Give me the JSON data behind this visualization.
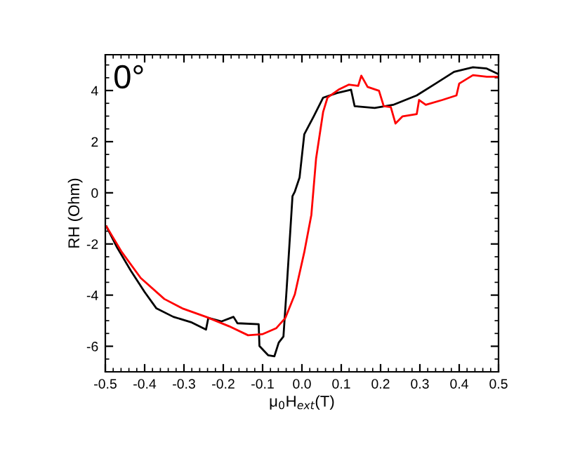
{
  "chart_data": {
    "type": "line",
    "xlabel": "μ$_{0}$H$_{ext}$(T)",
    "ylabel": "RH (Ohm)",
    "annotations": [
      "0°"
    ],
    "xlim": [
      -0.5,
      0.5
    ],
    "xticks": [
      -0.5,
      -0.4,
      -0.3,
      -0.2,
      -0.1,
      {
        "value": 0,
        "label": "0.0"
      },
      0.1,
      0.2,
      0.3,
      0.4,
      0.5
    ],
    "ylim": [
      -7,
      5.4
    ],
    "yticks": [
      -6,
      -4,
      -2,
      0,
      2,
      4
    ],
    "grid": false,
    "legend": false,
    "marker": "none",
    "line_style": "solid",
    "series": [
      {
        "color": "#000000",
        "x": [
          -0.497,
          -0.47,
          -0.435,
          -0.4,
          -0.37,
          -0.327,
          -0.28,
          -0.244,
          -0.238,
          -0.205,
          -0.174,
          -0.164,
          -0.11,
          -0.108,
          -0.086,
          -0.07,
          -0.059,
          -0.047,
          -0.039,
          -0.024,
          -0.018,
          -0.006,
          0.006,
          0.03,
          0.054,
          0.089,
          0.125,
          0.134,
          0.185,
          0.232,
          0.292,
          0.34,
          0.387,
          0.435,
          0.47,
          0.5
        ],
        "values": [
          -1.32,
          -2.14,
          -3.05,
          -3.88,
          -4.52,
          -4.85,
          -5.07,
          -5.35,
          -4.89,
          -5.03,
          -4.85,
          -5.1,
          -5.14,
          -5.99,
          -6.35,
          -6.39,
          -5.86,
          -5.62,
          -3.79,
          -0.13,
          0.05,
          0.6,
          2.29,
          2.99,
          3.72,
          3.9,
          4.03,
          3.39,
          3.32,
          3.44,
          3.81,
          4.27,
          4.73,
          4.91,
          4.86,
          4.64
        ]
      },
      {
        "color": "#ff0000",
        "x": [
          -0.497,
          -0.458,
          -0.41,
          -0.35,
          -0.304,
          -0.244,
          -0.185,
          -0.137,
          -0.101,
          -0.065,
          -0.042,
          -0.018,
          0.006,
          0.024,
          0.036,
          0.054,
          0.065,
          0.095,
          0.119,
          0.143,
          0.151,
          0.167,
          0.196,
          0.208,
          0.226,
          0.238,
          0.256,
          0.292,
          0.298,
          0.315,
          0.357,
          0.393,
          0.4,
          0.435,
          0.47,
          0.5
        ],
        "values": [
          -1.32,
          -2.32,
          -3.33,
          -4.15,
          -4.52,
          -4.85,
          -5.22,
          -5.57,
          -5.53,
          -5.29,
          -4.89,
          -3.97,
          -2.32,
          -0.86,
          1.34,
          3.17,
          3.72,
          4.05,
          4.23,
          4.18,
          4.58,
          4.14,
          3.99,
          3.39,
          3.35,
          2.71,
          2.99,
          3.08,
          3.63,
          3.44,
          3.63,
          3.81,
          4.27,
          4.6,
          4.54,
          4.54
        ]
      }
    ]
  }
}
